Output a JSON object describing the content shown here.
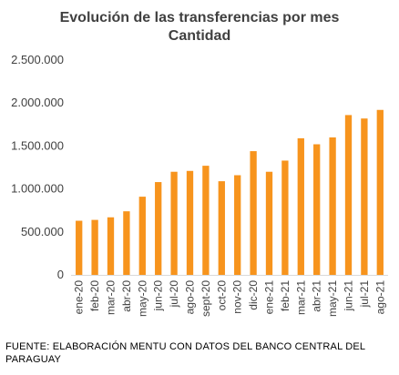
{
  "chart_data": {
    "type": "bar",
    "title": "Evolución  de las transferencias  por mes",
    "subtitle": "Cantidad",
    "categories": [
      "ene-20",
      "feb-20",
      "mar-20",
      "abr-20",
      "may-20",
      "jun-20",
      "jul-20",
      "ago-20",
      "sept-20",
      "oct-20",
      "nov-20",
      "dic-20",
      "ene-21",
      "feb-21",
      "mar-21",
      "abr-21",
      "may-21",
      "jun-21",
      "jul-21",
      "ago-21"
    ],
    "values": [
      630000,
      640000,
      670000,
      740000,
      910000,
      1080000,
      1200000,
      1210000,
      1270000,
      1090000,
      1160000,
      1440000,
      1200000,
      1330000,
      1590000,
      1520000,
      1600000,
      1860000,
      1820000,
      1920000
    ],
    "yticks": [
      "0",
      "500.000",
      "1.000.000",
      "1.500.000",
      "2.000.000",
      "2.500.000"
    ],
    "ylim": [
      0,
      2500000
    ],
    "xlabel": "",
    "ylabel": "",
    "grid": false,
    "bar_color": "#F7941D"
  },
  "footnote": "FUENTE: ELABORACIÓN MENTU CON DATOS DEL BANCO CENTRAL DEL PARAGUAY"
}
